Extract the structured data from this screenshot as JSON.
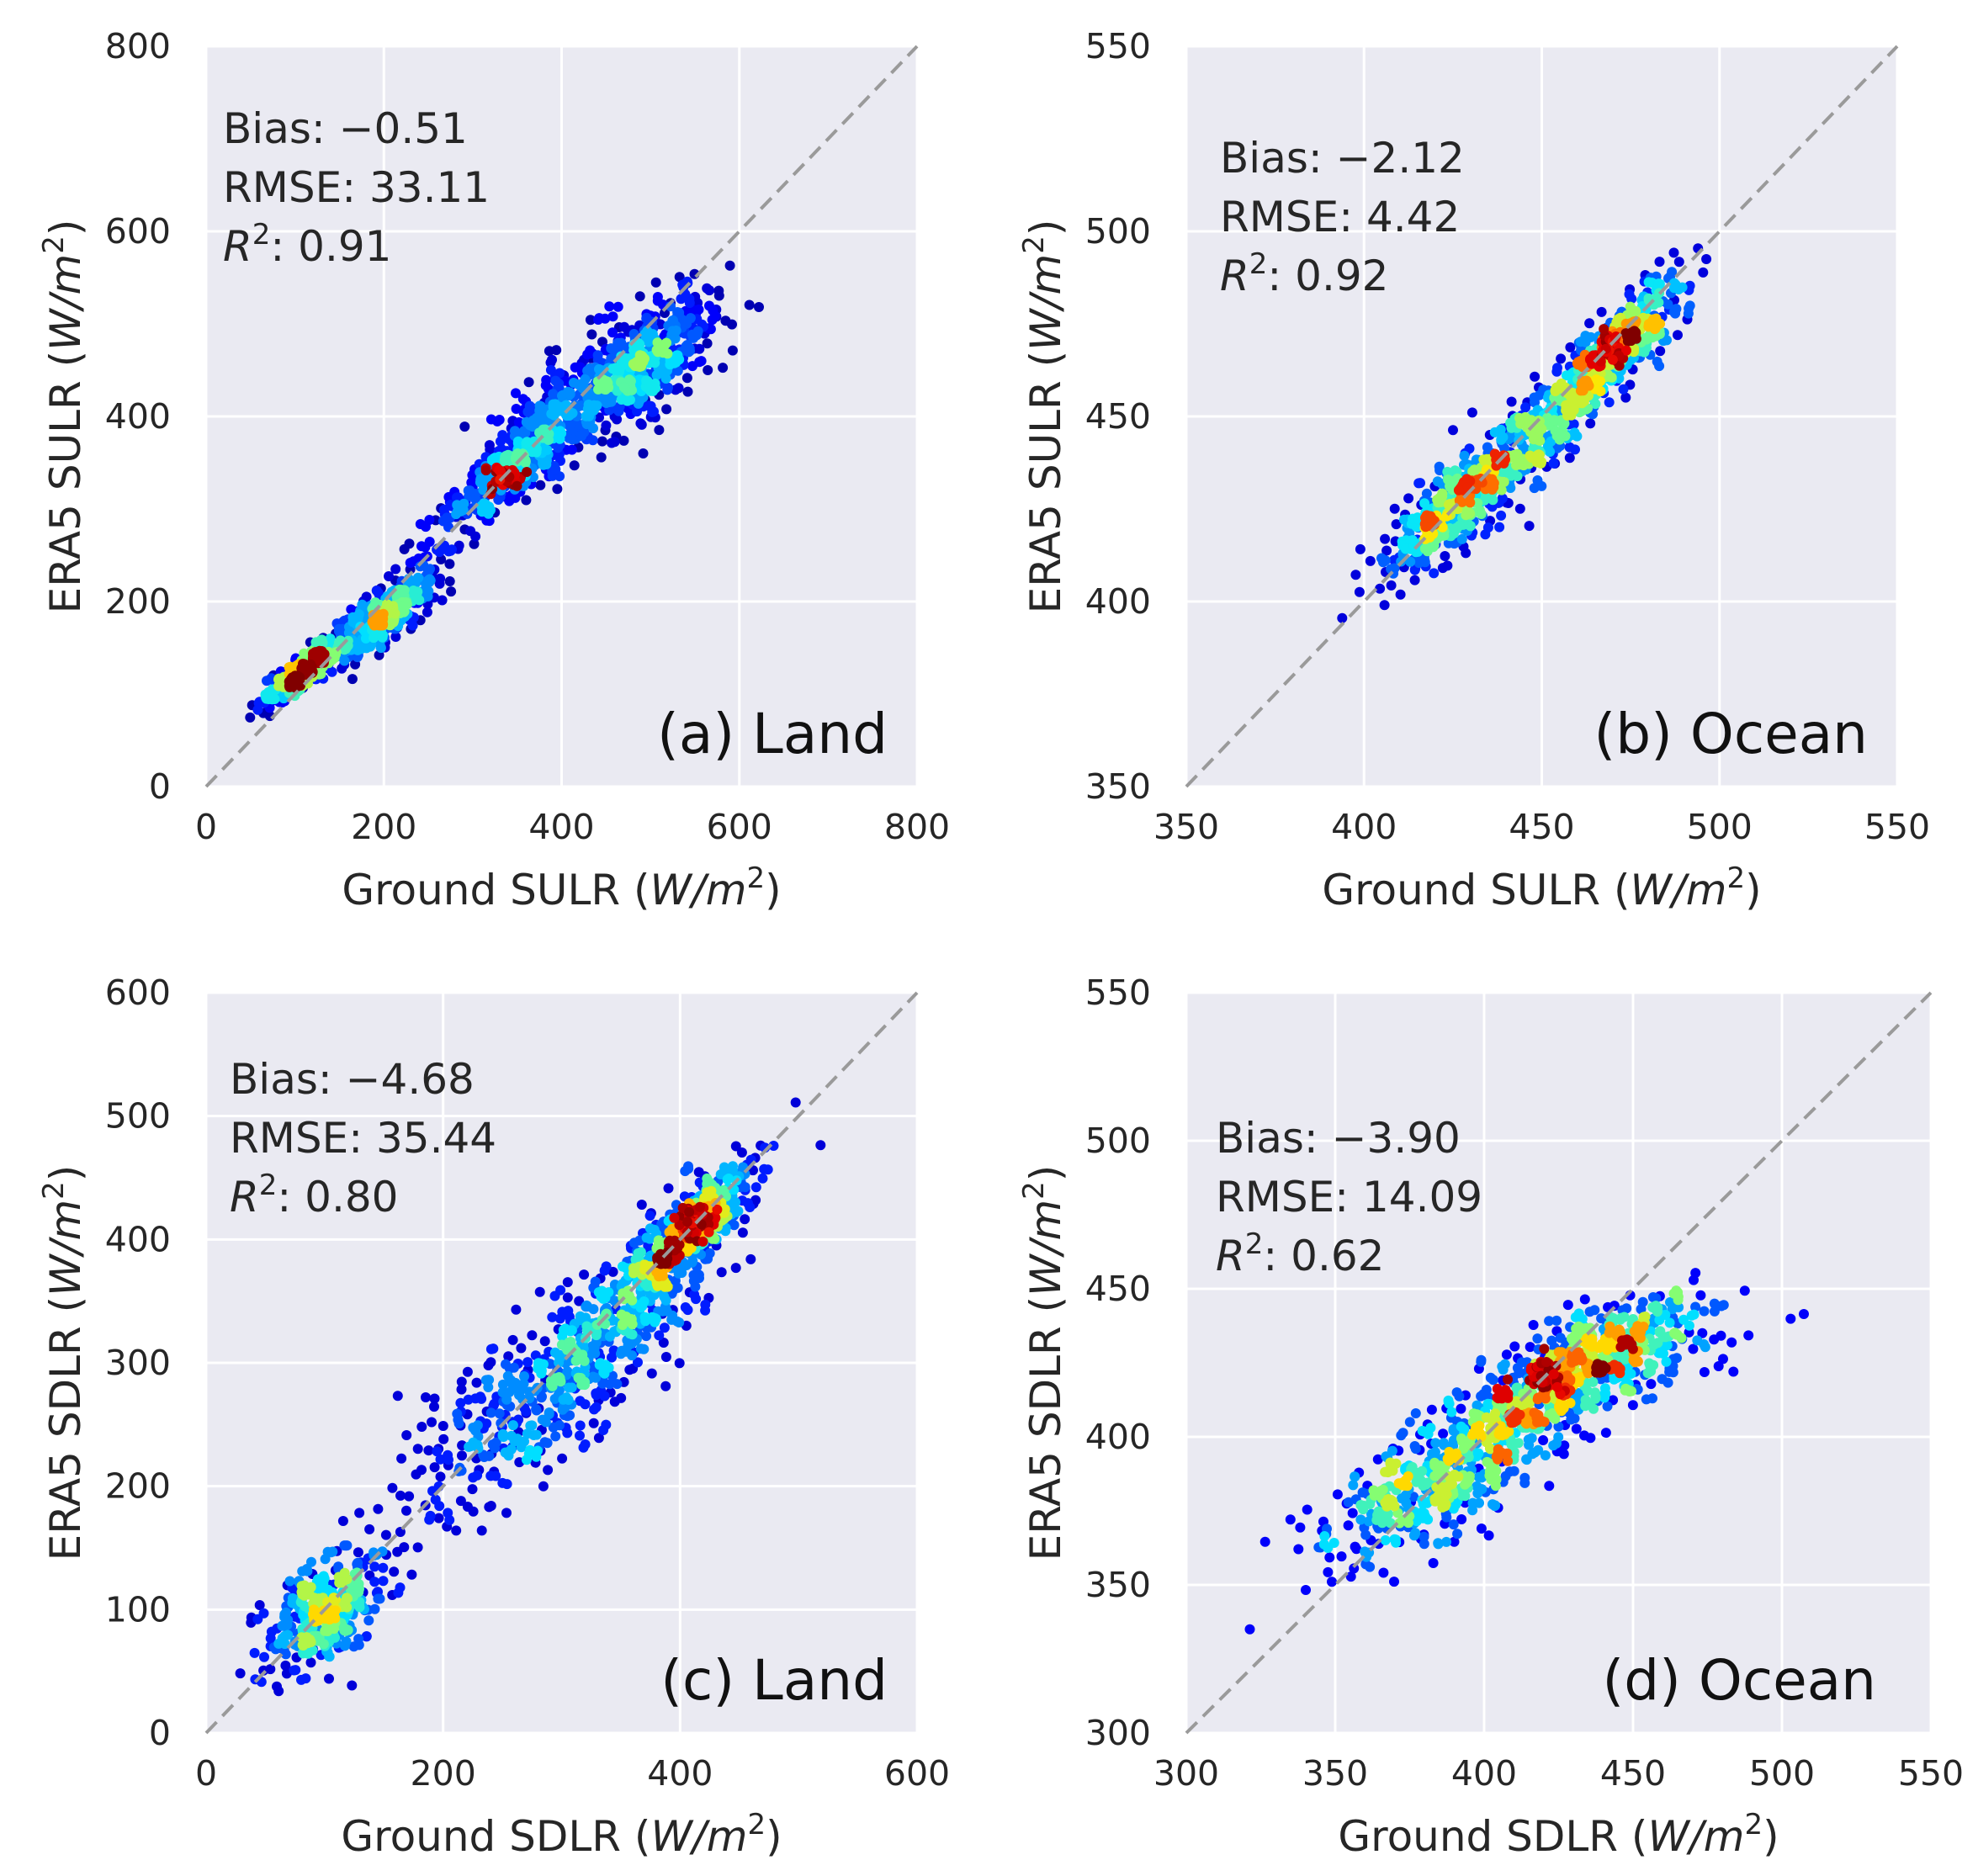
{
  "colors": {
    "panel_bg": "#eaeaf2",
    "grid": "#ffffff",
    "identity_line": "#9a9a9a",
    "colormap": [
      "#00007f",
      "#0000ff",
      "#0080ff",
      "#00e5ff",
      "#7dff7a",
      "#ffe600",
      "#ff7100",
      "#e60000",
      "#7f0000"
    ]
  },
  "chart_data": [
    {
      "type": "scatter",
      "panel_label": "(a) Land",
      "xlabel": {
        "text": "Ground SULR ",
        "unit_open": "(",
        "unit_w": "W",
        "unit_slash": "/",
        "unit_m": "m",
        "unit_exp": "2",
        "unit_close": ")"
      },
      "ylabel": {
        "text": "ERA5 SULR ",
        "unit_open": "(",
        "unit_w": "W",
        "unit_slash": "/",
        "unit_m": "m",
        "unit_exp": "2",
        "unit_close": ")"
      },
      "xlim": [
        0,
        800
      ],
      "ylim": [
        0,
        800
      ],
      "xticks": [
        "0",
        "200",
        "400",
        "600",
        "800"
      ],
      "yticks": [
        "0",
        "200",
        "400",
        "600",
        "800"
      ],
      "xtick_values": [
        0,
        200,
        400,
        600,
        800
      ],
      "ytick_values": [
        0,
        200,
        400,
        600,
        800
      ],
      "grid": true,
      "identity_line": true,
      "stats": {
        "bias_label": "Bias: ",
        "bias": "−0.51",
        "rmse_label": "RMSE: ",
        "rmse": "33.11",
        "r2_symbol": "R",
        "r2_exp": "2",
        "r2_colon": ": ",
        "r2": "0.91"
      },
      "clusters": [
        {
          "x": 110,
          "y": 125,
          "sx": 22,
          "sy": 18,
          "rho": 0.85
        },
        {
          "x": 200,
          "y": 185,
          "sx": 30,
          "sy": 25,
          "rho": 0.8
        },
        {
          "x": 345,
          "y": 345,
          "sx": 45,
          "sy": 40,
          "rho": 0.85
        },
        {
          "x": 430,
          "y": 420,
          "sx": 55,
          "sy": 45,
          "rho": 0.75
        },
        {
          "x": 500,
          "y": 460,
          "sx": 35,
          "sy": 35,
          "rho": 0.6
        }
      ],
      "hotspot": {
        "x": 335,
        "y": 335
      }
    },
    {
      "type": "scatter",
      "panel_label": "(b) Ocean",
      "xlabel": {
        "text": "Ground SULR ",
        "unit_open": "(",
        "unit_w": "W",
        "unit_slash": "/",
        "unit_m": "m",
        "unit_exp": "2",
        "unit_close": ")"
      },
      "ylabel": {
        "text": "ERA5 SULR ",
        "unit_open": "(",
        "unit_w": "W",
        "unit_slash": "/",
        "unit_m": "m",
        "unit_exp": "2",
        "unit_close": ")"
      },
      "xlim": [
        350,
        550
      ],
      "ylim": [
        350,
        550
      ],
      "xticks": [
        "350",
        "400",
        "450",
        "500",
        "550"
      ],
      "yticks": [
        "350",
        "400",
        "450",
        "500",
        "550"
      ],
      "xtick_values": [
        350,
        400,
        450,
        500,
        550
      ],
      "ytick_values": [
        350,
        400,
        450,
        500,
        550
      ],
      "grid": true,
      "identity_line": true,
      "stats": {
        "bias_label": "Bias: ",
        "bias": "−2.12",
        "rmse_label": "RMSE: ",
        "rmse": "4.42",
        "r2_symbol": "R",
        "r2_exp": "2",
        "r2_colon": ": ",
        "r2": "0.92"
      },
      "clusters": [
        {
          "x": 425,
          "y": 425,
          "sx": 10,
          "sy": 9,
          "rho": 0.75
        },
        {
          "x": 450,
          "y": 447,
          "sx": 12,
          "sy": 11,
          "rho": 0.85
        },
        {
          "x": 472,
          "y": 470,
          "sx": 9,
          "sy": 9,
          "rho": 0.8
        }
      ],
      "hotspot": {
        "x": 470,
        "y": 468
      }
    },
    {
      "type": "scatter",
      "panel_label": "(c) Land",
      "xlabel": {
        "text": "Ground SDLR ",
        "unit_open": "(",
        "unit_w": "W",
        "unit_slash": "/",
        "unit_m": "m",
        "unit_exp": "2",
        "unit_close": ")"
      },
      "ylabel": {
        "text": "ERA5 SDLR ",
        "unit_open": "(",
        "unit_w": "W",
        "unit_slash": "/",
        "unit_m": "m",
        "unit_exp": "2",
        "unit_close": ")"
      },
      "xlim": [
        0,
        600
      ],
      "ylim": [
        0,
        600
      ],
      "xticks": [
        "0",
        "200",
        "400",
        "600"
      ],
      "yticks": [
        "0",
        "100",
        "200",
        "300",
        "400",
        "500",
        "600"
      ],
      "xtick_values": [
        0,
        200,
        400,
        600
      ],
      "ytick_values": [
        0,
        100,
        200,
        300,
        400,
        500,
        600
      ],
      "grid": true,
      "identity_line": true,
      "stats": {
        "bias_label": "Bias: ",
        "bias": "−4.68",
        "rmse_label": "RMSE: ",
        "rmse": "35.44",
        "r2_symbol": "R",
        "r2_exp": "2",
        "r2_colon": ": ",
        "r2": "0.80"
      },
      "clusters": [
        {
          "x": 100,
          "y": 100,
          "sx": 25,
          "sy": 25,
          "rho": 0.5
        },
        {
          "x": 280,
          "y": 275,
          "sx": 55,
          "sy": 50,
          "rho": 0.75
        },
        {
          "x": 360,
          "y": 350,
          "sx": 45,
          "sy": 45,
          "rho": 0.8
        },
        {
          "x": 410,
          "y": 410,
          "sx": 25,
          "sy": 25,
          "rho": 0.85
        }
      ],
      "hotspot": {
        "x": 412,
        "y": 415
      }
    },
    {
      "type": "scatter",
      "panel_label": "(d) Ocean",
      "xlabel": {
        "text": "Ground SDLR ",
        "unit_open": "(",
        "unit_w": "W",
        "unit_slash": "/",
        "unit_m": "m",
        "unit_exp": "2",
        "unit_close": ")"
      },
      "ylabel": {
        "text": "ERA5 SDLR ",
        "unit_open": "(",
        "unit_w": "W",
        "unit_slash": "/",
        "unit_m": "m",
        "unit_exp": "2",
        "unit_close": ")"
      },
      "xlim": [
        300,
        550
      ],
      "ylim": [
        300,
        550
      ],
      "xticks": [
        "300",
        "350",
        "400",
        "450",
        "500",
        "550"
      ],
      "yticks": [
        "300",
        "350",
        "400",
        "450",
        "500",
        "550"
      ],
      "xtick_values": [
        300,
        350,
        400,
        450,
        500,
        550
      ],
      "ytick_values": [
        300,
        350,
        400,
        450,
        500,
        550
      ],
      "grid": true,
      "identity_line": true,
      "stats": {
        "bias_label": "Bias: ",
        "bias": "−3.90",
        "rmse_label": "RMSE: ",
        "rmse": "14.09",
        "r2_symbol": "R",
        "r2_exp": "2",
        "r2_colon": ": ",
        "r2": "0.62"
      },
      "clusters": [
        {
          "x": 385,
          "y": 385,
          "sx": 20,
          "sy": 14,
          "rho": 0.7
        },
        {
          "x": 415,
          "y": 410,
          "sx": 20,
          "sy": 12,
          "rho": 0.7
        },
        {
          "x": 445,
          "y": 430,
          "sx": 18,
          "sy": 10,
          "rho": 0.5
        }
      ],
      "hotspot": {
        "x": 420,
        "y": 420
      }
    }
  ]
}
